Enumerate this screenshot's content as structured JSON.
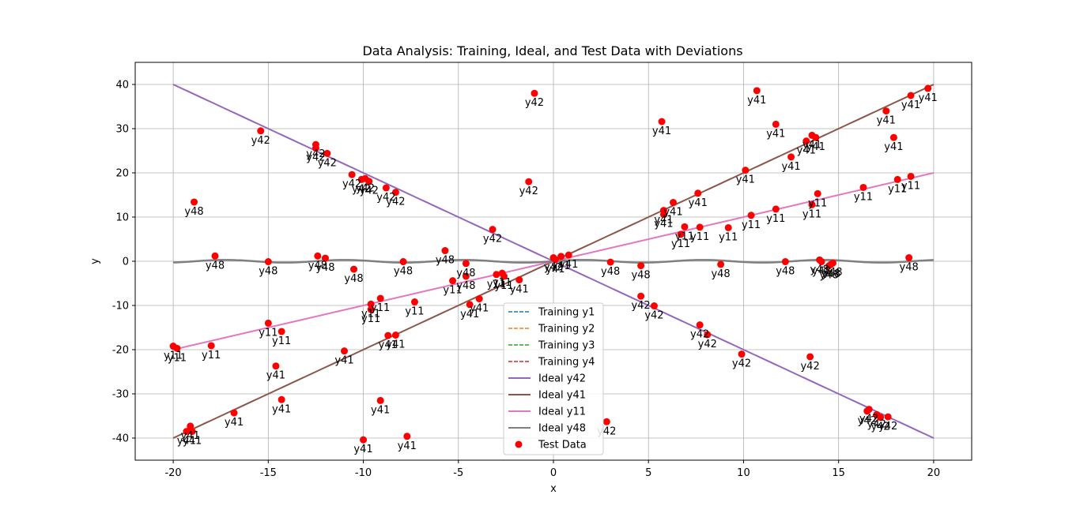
{
  "chart_data": {
    "type": "scatter",
    "title": "Data Analysis: Training, Ideal, and Test Data with Deviations",
    "xlabel": "x",
    "ylabel": "y",
    "xlim": [
      -22,
      22
    ],
    "ylim": [
      -45,
      45
    ],
    "xticks": [
      -20,
      -15,
      -10,
      -5,
      0,
      5,
      10,
      15,
      20
    ],
    "yticks": [
      -40,
      -30,
      -20,
      -10,
      0,
      10,
      20,
      30,
      40
    ],
    "grid": true,
    "legend_position": "lower center",
    "legend": [
      {
        "label": "Training y1",
        "color": "#1f77b4",
        "style": "dashed"
      },
      {
        "label": "Training y2",
        "color": "#ff7f0e",
        "style": "dashed"
      },
      {
        "label": "Training y3",
        "color": "#2ca02c",
        "style": "dashed"
      },
      {
        "label": "Training y4",
        "color": "#d62728",
        "style": "dashed"
      },
      {
        "label": "Ideal y42",
        "color": "#9467bd",
        "style": "solid"
      },
      {
        "label": "Ideal y41",
        "color": "#8c564b",
        "style": "solid"
      },
      {
        "label": "Ideal y11",
        "color": "#e377c2",
        "style": "solid"
      },
      {
        "label": "Ideal y48",
        "color": "#7f7f7f",
        "style": "solid"
      },
      {
        "label": "Test Data",
        "color": "#ff0000",
        "style": "marker"
      }
    ],
    "lines": [
      {
        "name": "Ideal y42",
        "color": "#9467bd",
        "function": "y = -2x (approx.)",
        "x": [
          -20,
          20
        ],
        "y": [
          40,
          -40
        ]
      },
      {
        "name": "Ideal y41",
        "color": "#8c564b",
        "function": "y = 2x (approx.)",
        "x": [
          -20,
          20
        ],
        "y": [
          -40,
          40
        ]
      },
      {
        "name": "Ideal y11",
        "color": "#e377c2",
        "function": "y = x (approx.)",
        "x": [
          -20,
          20
        ],
        "y": [
          -20,
          20
        ]
      },
      {
        "name": "Ideal y48",
        "color": "#7f7f7f",
        "function": "y ≈ 0.3·sin(x)",
        "x": [
          -20,
          20
        ],
        "y": [
          0,
          0
        ]
      }
    ],
    "test_points": [
      {
        "x": -20.0,
        "y": -19.2,
        "label": "y11"
      },
      {
        "x": -19.8,
        "y": -19.7,
        "label": "y11"
      },
      {
        "x": -19.3,
        "y": -38.5,
        "label": "y41"
      },
      {
        "x": -19.1,
        "y": -37.3,
        "label": "y41"
      },
      {
        "x": -19.0,
        "y": -38.5,
        "label": "y41"
      },
      {
        "x": -18.9,
        "y": 13.4,
        "label": "y48"
      },
      {
        "x": -18.0,
        "y": -19.1,
        "label": "y11"
      },
      {
        "x": -17.8,
        "y": 1.2,
        "label": "y48"
      },
      {
        "x": -16.8,
        "y": -34.3,
        "label": "y41"
      },
      {
        "x": -15.4,
        "y": 29.5,
        "label": "y42"
      },
      {
        "x": -15.0,
        "y": -0.1,
        "label": "y48"
      },
      {
        "x": -15.0,
        "y": -14.0,
        "label": "y11"
      },
      {
        "x": -14.6,
        "y": -23.7,
        "label": "y41"
      },
      {
        "x": -14.3,
        "y": -15.9,
        "label": "y11"
      },
      {
        "x": -14.3,
        "y": -31.3,
        "label": "y41"
      },
      {
        "x": -12.5,
        "y": 26.4,
        "label": "y42"
      },
      {
        "x": -12.5,
        "y": 25.6,
        "label": "y42"
      },
      {
        "x": -12.4,
        "y": 1.2,
        "label": "y48"
      },
      {
        "x": -12.0,
        "y": 0.7,
        "label": "y48"
      },
      {
        "x": -11.9,
        "y": 24.4,
        "label": "y42"
      },
      {
        "x": -11.0,
        "y": -20.3,
        "label": "y41"
      },
      {
        "x": -10.5,
        "y": -1.8,
        "label": "y48"
      },
      {
        "x": -10.6,
        "y": 19.6,
        "label": "y42"
      },
      {
        "x": -10.1,
        "y": 18.5,
        "label": "y42"
      },
      {
        "x": -10.0,
        "y": -40.4,
        "label": "y41"
      },
      {
        "x": -9.9,
        "y": 18.7,
        "label": "y42"
      },
      {
        "x": -9.7,
        "y": 18.1,
        "label": "y42"
      },
      {
        "x": -9.6,
        "y": -9.7,
        "label": "y11"
      },
      {
        "x": -9.6,
        "y": -10.9,
        "label": "y11"
      },
      {
        "x": -9.1,
        "y": -31.5,
        "label": "y41"
      },
      {
        "x": -9.1,
        "y": -8.4,
        "label": "y11"
      },
      {
        "x": -8.8,
        "y": 16.6,
        "label": "y42"
      },
      {
        "x": -8.7,
        "y": -16.8,
        "label": "y41"
      },
      {
        "x": -8.3,
        "y": -16.7,
        "label": "y41"
      },
      {
        "x": -8.3,
        "y": 15.6,
        "label": "y42"
      },
      {
        "x": -7.9,
        "y": -0.1,
        "label": "y48"
      },
      {
        "x": -7.7,
        "y": -39.6,
        "label": "y41"
      },
      {
        "x": -7.3,
        "y": -9.2,
        "label": "y11"
      },
      {
        "x": -5.7,
        "y": 2.4,
        "label": "y48"
      },
      {
        "x": -5.3,
        "y": -4.4,
        "label": "y11"
      },
      {
        "x": -4.6,
        "y": -0.5,
        "label": "y48"
      },
      {
        "x": -4.6,
        "y": -3.4,
        "label": "y48"
      },
      {
        "x": -4.4,
        "y": -9.8,
        "label": "y41"
      },
      {
        "x": -3.9,
        "y": -8.5,
        "label": "y41"
      },
      {
        "x": -3.2,
        "y": 7.2,
        "label": "y42"
      },
      {
        "x": -3.0,
        "y": -3.0,
        "label": "y11"
      },
      {
        "x": -2.7,
        "y": -2.7,
        "label": "y11"
      },
      {
        "x": -2.6,
        "y": -3.4,
        "label": "y11"
      },
      {
        "x": -1.8,
        "y": -4.2,
        "label": "y41"
      },
      {
        "x": -1.3,
        "y": 18.0,
        "label": "y42"
      },
      {
        "x": -1.0,
        "y": 38.0,
        "label": "y42"
      },
      {
        "x": 0.0,
        "y": 0.8,
        "label": "y42"
      },
      {
        "x": 0.1,
        "y": 0.4,
        "label": "y41"
      },
      {
        "x": 0.4,
        "y": 1.1,
        "label": "y41"
      },
      {
        "x": 0.8,
        "y": 1.4,
        "label": "y41"
      },
      {
        "x": 2.8,
        "y": -36.3,
        "label": "y42"
      },
      {
        "x": 3.0,
        "y": -0.2,
        "label": "y48"
      },
      {
        "x": 4.6,
        "y": -7.9,
        "label": "y42"
      },
      {
        "x": 4.6,
        "y": -1.0,
        "label": "y48"
      },
      {
        "x": 5.3,
        "y": -10.1,
        "label": "y42"
      },
      {
        "x": 5.7,
        "y": 31.6,
        "label": "y41"
      },
      {
        "x": 5.8,
        "y": 11.5,
        "label": "y41"
      },
      {
        "x": 5.8,
        "y": 10.6,
        "label": "y41"
      },
      {
        "x": 6.3,
        "y": 13.3,
        "label": "y41"
      },
      {
        "x": 6.7,
        "y": 6.1,
        "label": "y11"
      },
      {
        "x": 6.9,
        "y": 7.8,
        "label": "y11"
      },
      {
        "x": 7.6,
        "y": 15.4,
        "label": "y41"
      },
      {
        "x": 7.7,
        "y": 7.7,
        "label": "y11"
      },
      {
        "x": 7.7,
        "y": -14.4,
        "label": "y42"
      },
      {
        "x": 8.1,
        "y": -16.6,
        "label": "y42"
      },
      {
        "x": 8.8,
        "y": -0.7,
        "label": "y48"
      },
      {
        "x": 9.2,
        "y": 7.6,
        "label": "y11"
      },
      {
        "x": 9.9,
        "y": -21.0,
        "label": "y42"
      },
      {
        "x": 10.1,
        "y": 20.6,
        "label": "y41"
      },
      {
        "x": 10.4,
        "y": 10.4,
        "label": "y11"
      },
      {
        "x": 10.7,
        "y": 38.6,
        "label": "y41"
      },
      {
        "x": 11.7,
        "y": 31.0,
        "label": "y41"
      },
      {
        "x": 11.7,
        "y": 11.8,
        "label": "y11"
      },
      {
        "x": 12.2,
        "y": -0.1,
        "label": "y48"
      },
      {
        "x": 12.5,
        "y": 23.6,
        "label": "y41"
      },
      {
        "x": 13.3,
        "y": 27.2,
        "label": "y41"
      },
      {
        "x": 13.5,
        "y": -21.6,
        "label": "y42"
      },
      {
        "x": 13.6,
        "y": 28.5,
        "label": "y41"
      },
      {
        "x": 13.6,
        "y": 12.8,
        "label": "y11"
      },
      {
        "x": 13.8,
        "y": 28.0,
        "label": "y41"
      },
      {
        "x": 13.9,
        "y": 15.3,
        "label": "y11"
      },
      {
        "x": 14.0,
        "y": 0.3,
        "label": "y48"
      },
      {
        "x": 14.1,
        "y": -0.1,
        "label": "y48"
      },
      {
        "x": 14.5,
        "y": -1.0,
        "label": "y48"
      },
      {
        "x": 14.6,
        "y": -0.7,
        "label": "y48"
      },
      {
        "x": 14.7,
        "y": -0.4,
        "label": "y48"
      },
      {
        "x": 16.3,
        "y": 16.7,
        "label": "y11"
      },
      {
        "x": 16.5,
        "y": -33.9,
        "label": "y42"
      },
      {
        "x": 16.6,
        "y": -33.5,
        "label": "y42"
      },
      {
        "x": 17.0,
        "y": -34.7,
        "label": "y42"
      },
      {
        "x": 17.2,
        "y": -35.3,
        "label": "y42"
      },
      {
        "x": 17.5,
        "y": 34.0,
        "label": "y41"
      },
      {
        "x": 17.6,
        "y": -35.2,
        "label": "y42"
      },
      {
        "x": 17.9,
        "y": 28.0,
        "label": "y41"
      },
      {
        "x": 18.1,
        "y": 18.5,
        "label": "y11"
      },
      {
        "x": 18.7,
        "y": 0.8,
        "label": "y48"
      },
      {
        "x": 18.8,
        "y": 37.5,
        "label": "y41"
      },
      {
        "x": 18.8,
        "y": 19.2,
        "label": "y11"
      },
      {
        "x": 19.7,
        "y": 39.1,
        "label": "y41"
      }
    ]
  }
}
